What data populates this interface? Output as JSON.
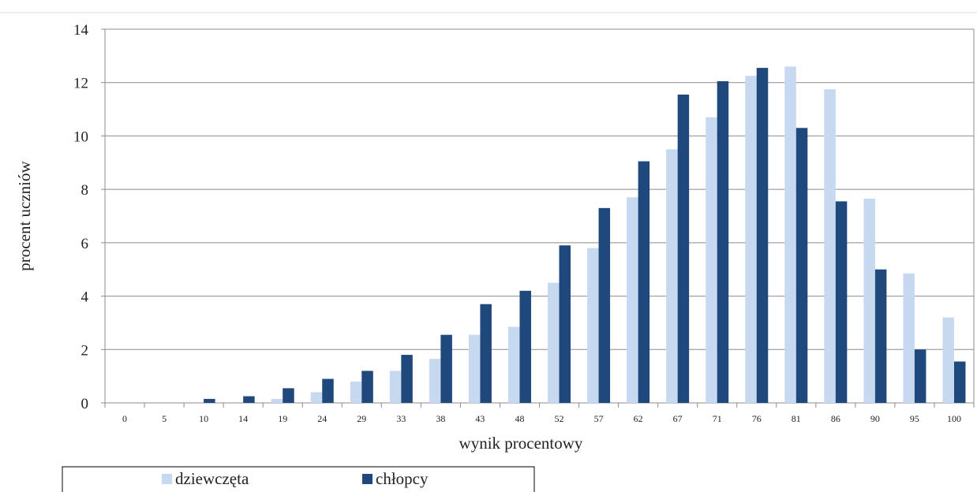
{
  "chart_data": {
    "type": "bar",
    "xlabel": "wynik procentowy",
    "ylabel": "procent uczniów",
    "ylim": [
      0,
      14
    ],
    "yticks": [
      0,
      2,
      4,
      6,
      8,
      10,
      12,
      14
    ],
    "grid": true,
    "legend_position": "bottom-left",
    "categories": [
      "0",
      "5",
      "10",
      "14",
      "19",
      "24",
      "29",
      "33",
      "38",
      "43",
      "48",
      "52",
      "57",
      "62",
      "67",
      "71",
      "76",
      "81",
      "86",
      "90",
      "95",
      "100"
    ],
    "series": [
      {
        "name": "dziewczęta",
        "color": "#c6d9f1",
        "values": [
          0,
          0,
          0,
          0,
          0.15,
          0.4,
          0.8,
          1.2,
          1.65,
          2.55,
          2.85,
          4.5,
          5.8,
          7.7,
          9.5,
          10.7,
          12.25,
          12.6,
          11.75,
          7.65,
          4.85,
          3.2
        ]
      },
      {
        "name": "chłopcy",
        "color": "#1f497d",
        "values": [
          0,
          0,
          0.15,
          0.25,
          0.55,
          0.9,
          1.2,
          1.8,
          2.55,
          3.7,
          4.2,
          5.9,
          7.3,
          9.05,
          11.55,
          12.05,
          12.55,
          10.3,
          7.55,
          5.0,
          2.0,
          1.55
        ]
      }
    ]
  }
}
